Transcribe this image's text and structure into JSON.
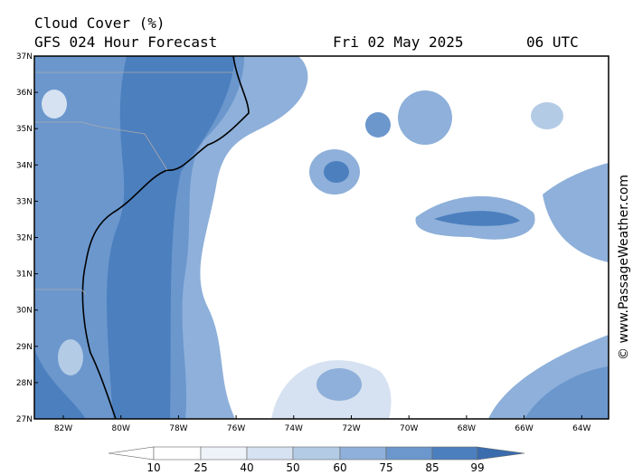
{
  "header": {
    "title": "Cloud Cover (%)",
    "subtitle": "GFS 024 Hour Forecast",
    "date": "Fri 02 May 2025",
    "time": "06 UTC"
  },
  "map": {
    "lat_labels": [
      "37N",
      "36N",
      "35N",
      "34N",
      "33N",
      "32N",
      "31N",
      "30N",
      "29N",
      "28N",
      "27N"
    ],
    "lon_labels": [
      "82W",
      "80W",
      "78W",
      "76W",
      "74W",
      "72W",
      "70W",
      "68W",
      "66W",
      "64W"
    ]
  },
  "colorbar": {
    "labels": [
      10,
      25,
      40,
      50,
      60,
      75,
      85,
      99
    ]
  },
  "watermark": "© www.PassageWeather.com"
}
